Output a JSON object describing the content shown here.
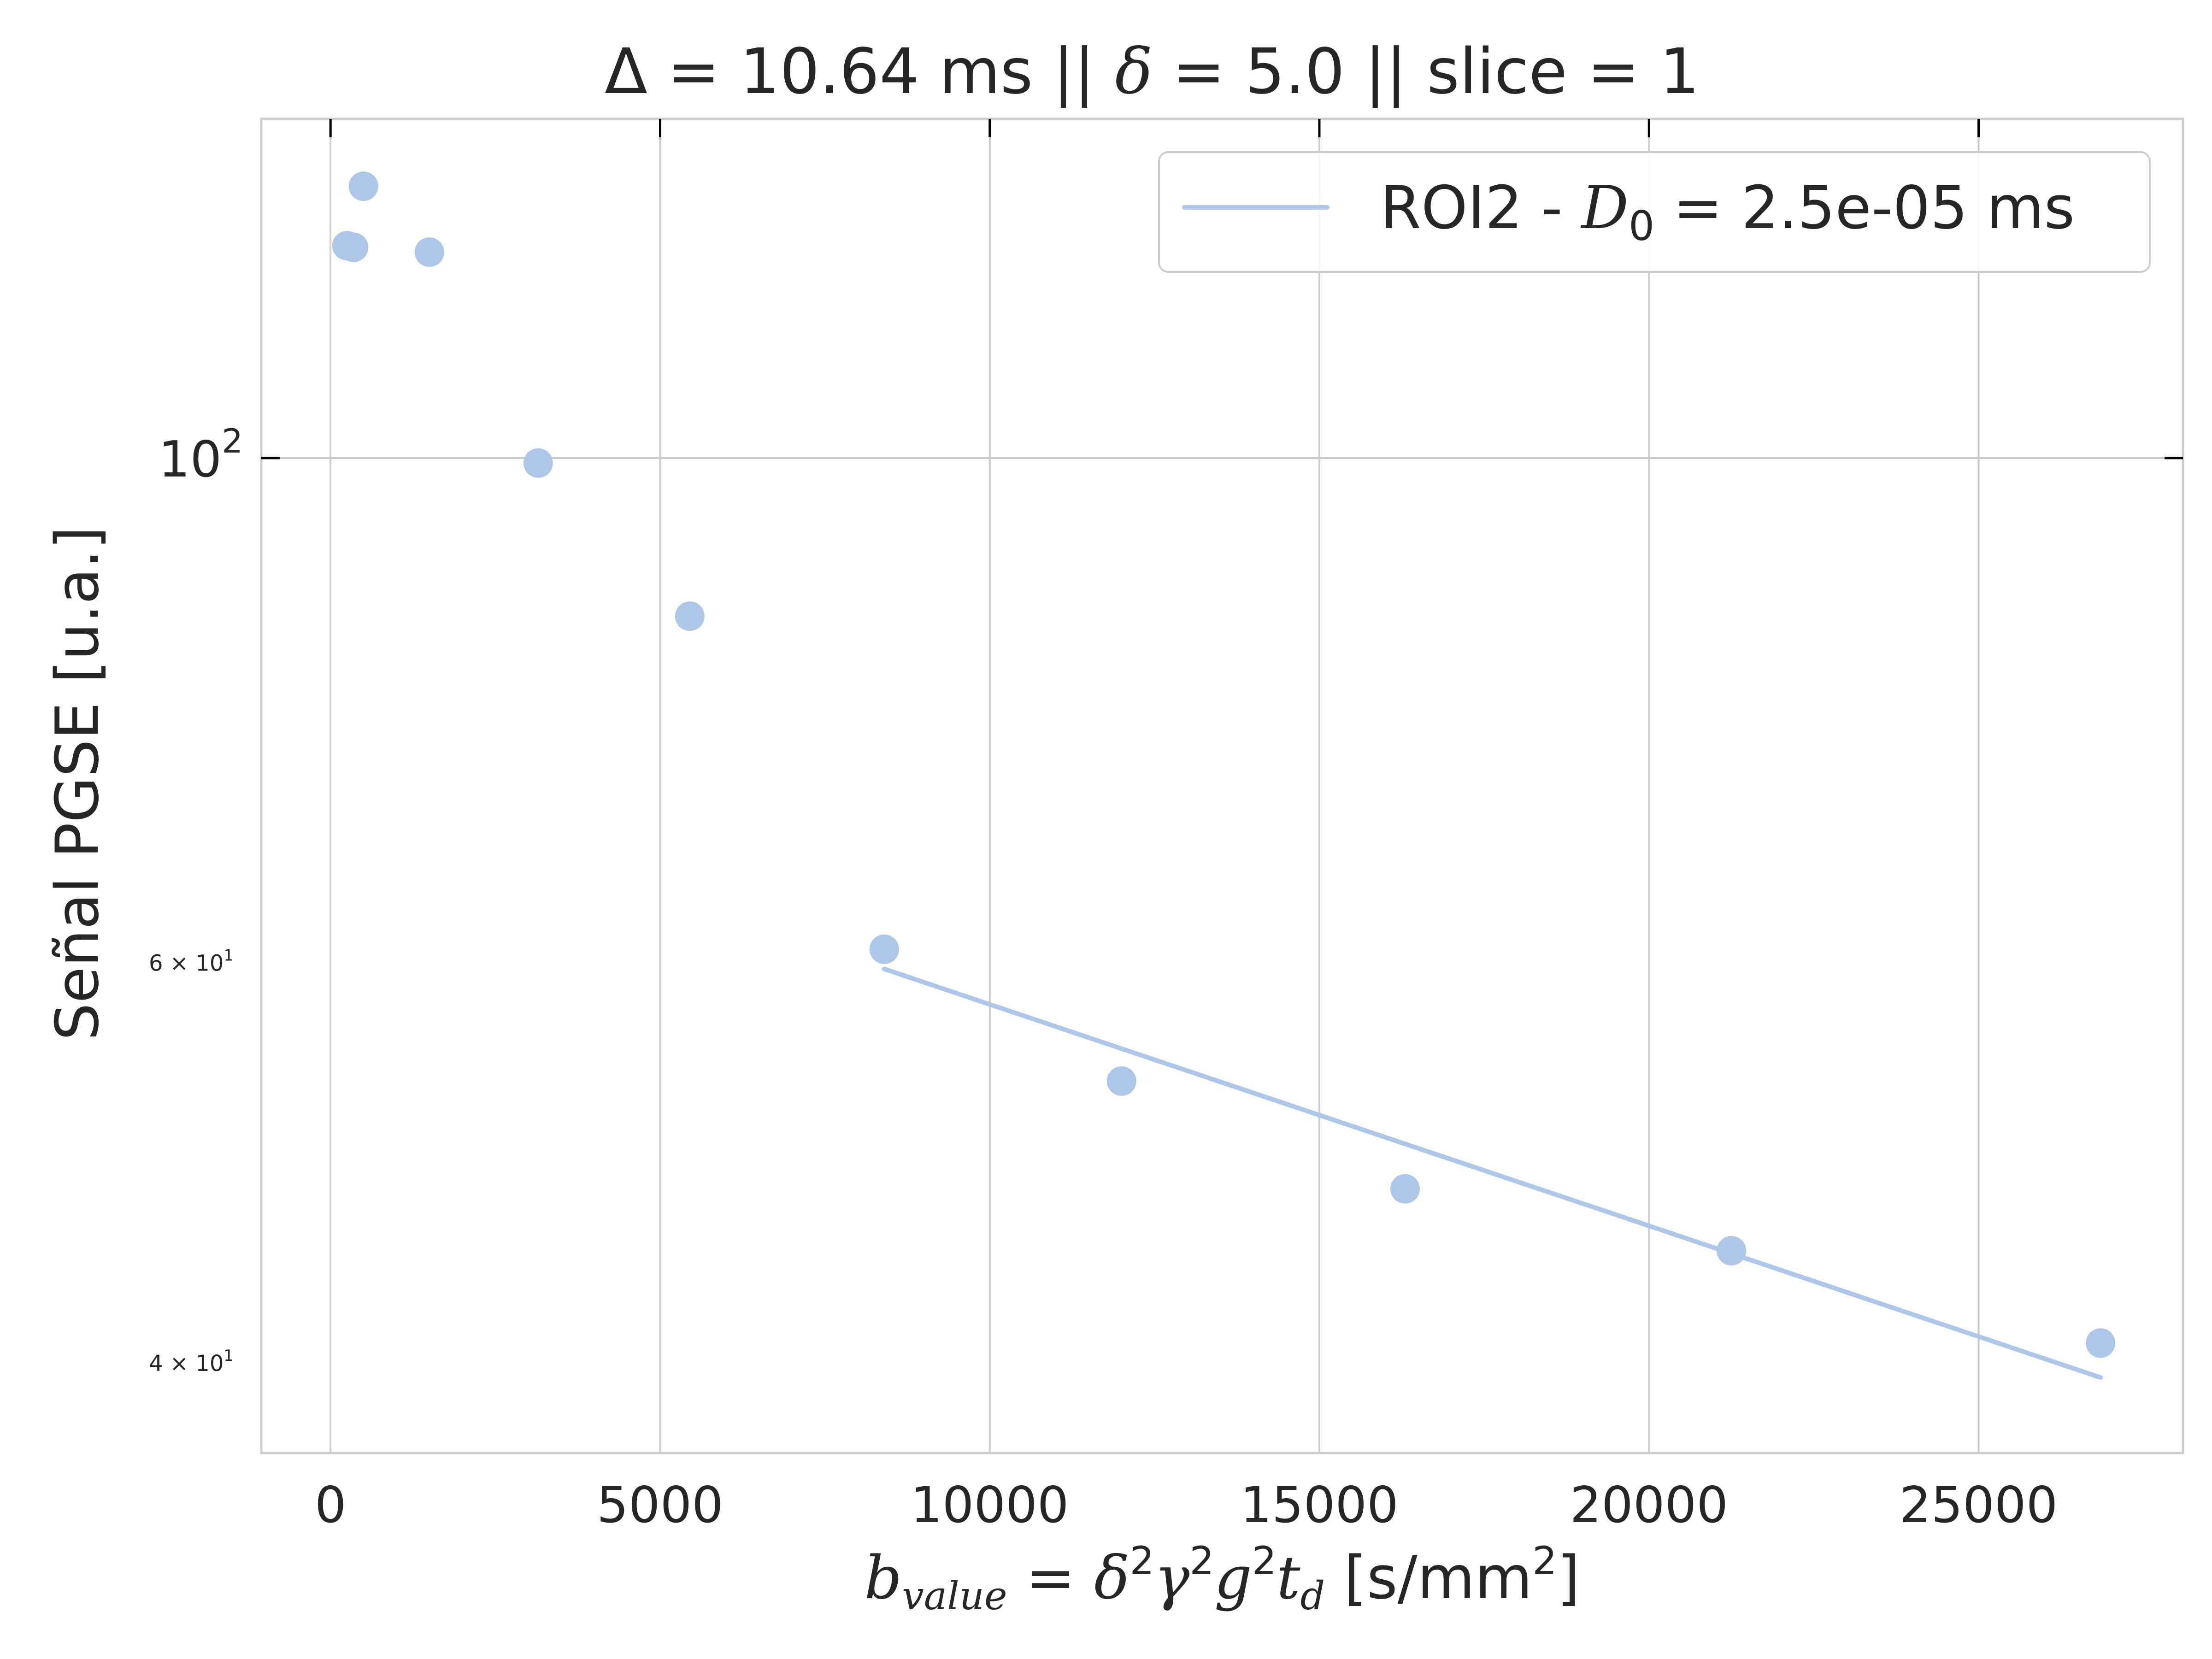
{
  "chart_data": {
    "type": "scatter",
    "title": {
      "delta_cap": "Δ",
      "part1": " = 10.64 ms  ||  ",
      "delta": "δ",
      "part2": " = 5.0 || slice = 1"
    },
    "xlabel": {
      "b": "b",
      "value_sub": "value",
      "eq": " = ",
      "delta": "δ",
      "sq1": "2",
      "gamma": "γ",
      "sq2": "2",
      "g": "g",
      "sq3": "2",
      "t": "t",
      "d_sub": "d",
      "units": " [s/mm",
      "units_sup": "2",
      "units_end": "]"
    },
    "ylabel": "Señal PGSE [u.a.]",
    "x_ticks": [
      "0",
      "5000",
      "10000",
      "15000",
      "20000",
      "25000"
    ],
    "x_tick_values": [
      0,
      5000,
      10000,
      15000,
      20000,
      25000
    ],
    "y_ticks": [
      {
        "value": 100,
        "base": "10",
        "exp": "2",
        "style": "major"
      },
      {
        "value": 60,
        "base": "6 × 10",
        "exp": "1",
        "style": "minor"
      },
      {
        "value": 40,
        "base": "4 × 10",
        "exp": "1",
        "style": "minor"
      }
    ],
    "xlim": [
      -1050,
      28100
    ],
    "ylim": [
      36.5,
      141
    ],
    "y_scale": "log",
    "grid": true,
    "legend_position": "top-right",
    "series": [
      {
        "kind": "scatter",
        "color": "#aec7e8",
        "x": [
          250,
          350,
          500,
          1500,
          3150,
          5450,
          8400,
          12000,
          16300,
          21250,
          26850
        ],
        "y": [
          124.0,
          123.8,
          131.7,
          123.2,
          99.5,
          85.2,
          60.8,
          53.2,
          47.7,
          44.8,
          40.8
        ]
      },
      {
        "kind": "line",
        "color": "#aec7e8",
        "legend": {
          "prefix": "ROI2 - ",
          "sym": "D",
          "sub": "0",
          "suffix": " = 2.5e-05 ms"
        },
        "x": [
          8400,
          26850
        ],
        "y": [
          59.6,
          39.4
        ]
      }
    ]
  }
}
